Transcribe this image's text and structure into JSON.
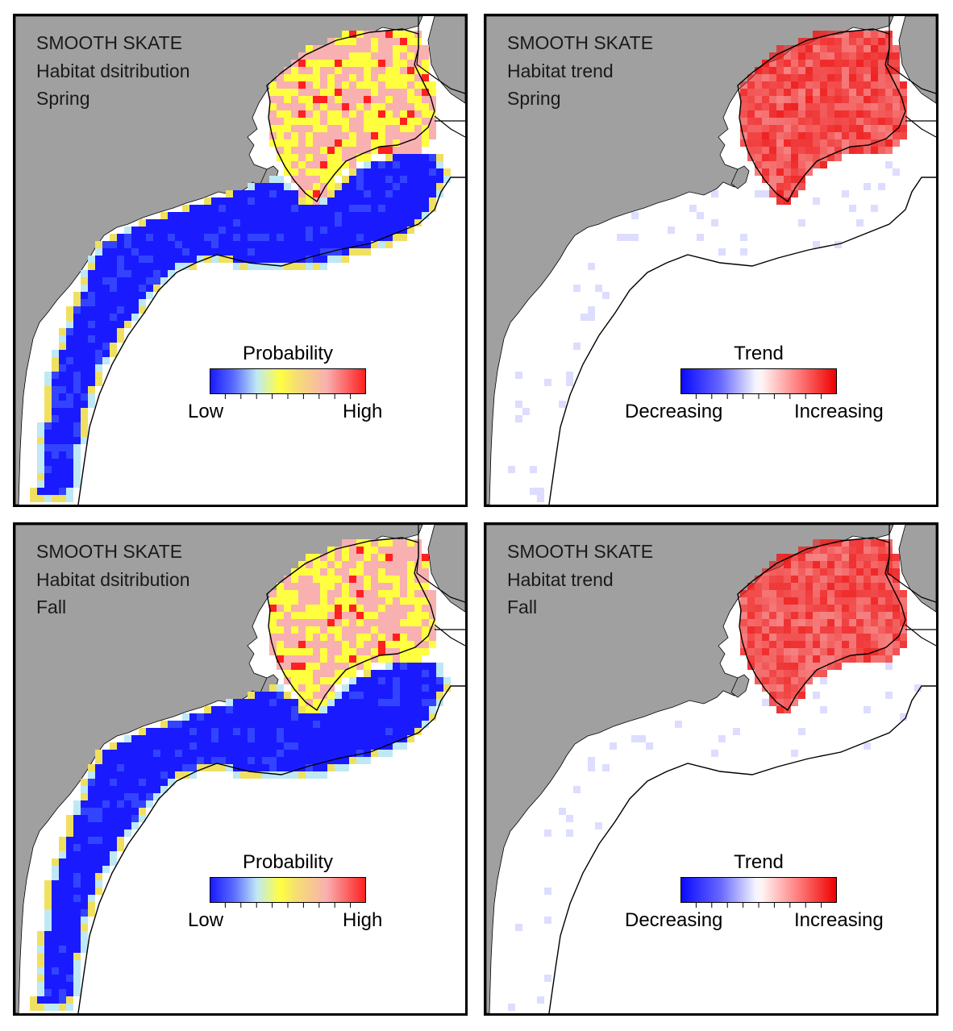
{
  "panels": [
    {
      "id": "spring-distribution",
      "species": "SMOOTH SKATE",
      "map_type": "Habitat dsitribution",
      "season": "Spring",
      "legend": {
        "title": "Probability",
        "low": "Low",
        "high": "High",
        "scale": "distribution"
      },
      "intensity": 0.62
    },
    {
      "id": "spring-trend",
      "species": "SMOOTH SKATE",
      "map_type": "Habitat trend",
      "season": "Spring",
      "legend": {
        "title": "Trend",
        "low": "Decreasing",
        "high": "Increasing",
        "scale": "trend"
      },
      "intensity": 0.7
    },
    {
      "id": "fall-distribution",
      "species": "SMOOTH SKATE",
      "map_type": "Habitat dsitribution",
      "season": "Fall",
      "legend": {
        "title": "Probability",
        "low": "Low",
        "high": "High",
        "scale": "distribution"
      },
      "intensity": 0.55
    },
    {
      "id": "fall-trend",
      "species": "SMOOTH SKATE",
      "map_type": "Habitat trend",
      "season": "Fall",
      "legend": {
        "title": "Trend",
        "low": "Decreasing",
        "high": "Increasing",
        "scale": "trend"
      },
      "intensity": 0.65
    }
  ],
  "colors": {
    "land": "#a0a0a0",
    "water": "#ffffff",
    "shelf_low": "#1a1aff",
    "gulf_mid": "#ffff40",
    "gulf_high": "#f9b0b0",
    "hot": "#ff2020",
    "trend_increase": "#ee1c1c",
    "trend_decrease": "#3a3aff"
  }
}
